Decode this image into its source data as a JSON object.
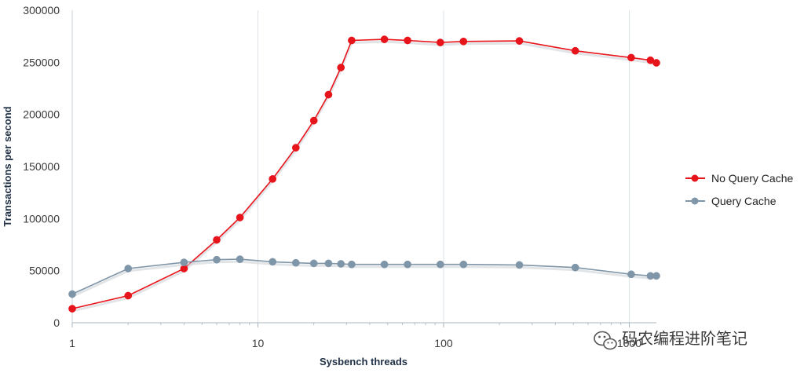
{
  "chart_data": {
    "type": "line",
    "title": "",
    "xlabel": "Sysbench threads",
    "ylabel": "Transactions per second",
    "x_scale": "log",
    "xlim": [
      1,
      1400
    ],
    "ylim": [
      0,
      300000
    ],
    "x_ticks": [
      {
        "value": 1,
        "label": "1"
      },
      {
        "value": 10,
        "label": "10"
      },
      {
        "value": 100,
        "label": "100"
      },
      {
        "value": 1000,
        "label": "1000"
      }
    ],
    "y_ticks": [
      {
        "value": 0,
        "label": "0"
      },
      {
        "value": 50000,
        "label": "50000"
      },
      {
        "value": 100000,
        "label": "100000"
      },
      {
        "value": 150000,
        "label": "150000"
      },
      {
        "value": 200000,
        "label": "200000"
      },
      {
        "value": 250000,
        "label": "250000"
      },
      {
        "value": 300000,
        "label": "300000"
      }
    ],
    "grid": {
      "vertical": true,
      "horizontal": false
    },
    "legend_position": "right",
    "series": [
      {
        "name": "No Query Cache",
        "color": "#e8141b",
        "x": [
          1,
          2,
          4,
          6,
          8,
          12,
          16,
          20,
          24,
          28,
          32,
          48,
          64,
          96,
          128,
          256,
          512,
          1024,
          1300,
          1400
        ],
        "y": [
          13500,
          26000,
          52000,
          79500,
          101000,
          138000,
          168000,
          194000,
          219000,
          245000,
          271000,
          272000,
          271000,
          269000,
          270000,
          270500,
          261000,
          254500,
          252000,
          249500
        ]
      },
      {
        "name": "Query Cache",
        "color": "#7f95a8",
        "x": [
          1,
          2,
          4,
          6,
          8,
          12,
          16,
          20,
          24,
          28,
          32,
          48,
          64,
          96,
          128,
          256,
          512,
          1024,
          1300,
          1400
        ],
        "y": [
          27500,
          52000,
          58000,
          60500,
          61000,
          58500,
          57500,
          57000,
          57000,
          56500,
          56000,
          56000,
          56000,
          56000,
          56000,
          55500,
          53000,
          46500,
          45000,
          45000
        ]
      }
    ]
  },
  "watermark": {
    "text": "码农编程进阶笔记",
    "icon": "wechat-icon"
  }
}
